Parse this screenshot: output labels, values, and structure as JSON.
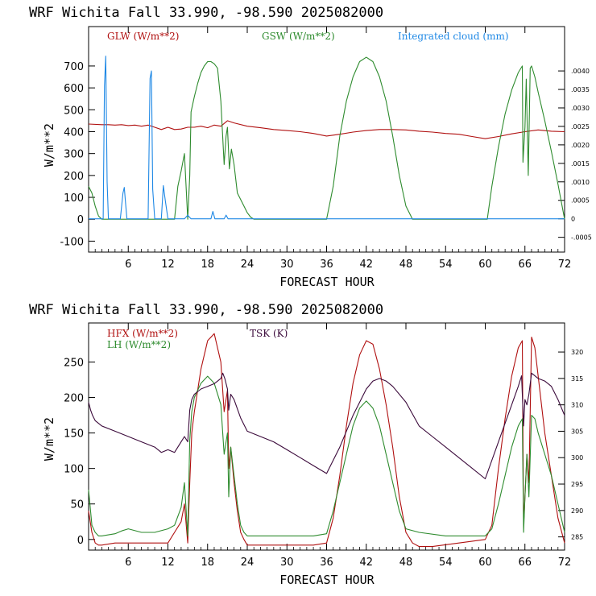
{
  "chart_data": [
    {
      "type": "line",
      "header": "WRF   Wichita Fall  33.990, -98.590  2025082000",
      "xlabel": "FORECAST HOUR",
      "ylabel": "W/m**2",
      "xlim": [
        0,
        72
      ],
      "ylim": [
        -150,
        880
      ],
      "x_ticks": [
        "6",
        "12",
        "18",
        "24",
        "30",
        "36",
        "42",
        "48",
        "54",
        "60",
        "66",
        "72"
      ],
      "y_ticks": [
        "-100",
        "0",
        "100",
        "200",
        "300",
        "400",
        "500",
        "600",
        "700"
      ],
      "y2lim": [
        -0.0009,
        0.0052
      ],
      "y2_ticks": [
        "-.0005",
        "0",
        ".0005",
        ".0010",
        ".0015",
        ".0020",
        ".0025",
        ".0030",
        ".0035",
        ".0040"
      ],
      "series": [
        {
          "name": "GLW (W/m**2)",
          "color": "#b01010",
          "axis": "left",
          "x": [
            0,
            2,
            3,
            4,
            5,
            6,
            7,
            8,
            9,
            10,
            11,
            12,
            13,
            14,
            15,
            16,
            17,
            18,
            19,
            20,
            21,
            22,
            24,
            26,
            28,
            30,
            32,
            34,
            36,
            38,
            40,
            42,
            44,
            46,
            48,
            50,
            52,
            54,
            56,
            58,
            60,
            62,
            64,
            66,
            68,
            70,
            72
          ],
          "y": [
            435,
            432,
            432,
            430,
            432,
            428,
            430,
            425,
            430,
            420,
            410,
            420,
            410,
            412,
            420,
            420,
            425,
            418,
            430,
            425,
            450,
            440,
            425,
            418,
            410,
            405,
            400,
            392,
            380,
            388,
            398,
            405,
            410,
            410,
            408,
            402,
            398,
            392,
            388,
            378,
            368,
            378,
            390,
            400,
            408,
            402,
            400
          ]
        },
        {
          "name": "GSW (W/m**2)",
          "color": "#2e8b2e",
          "axis": "left",
          "x": [
            0,
            0.5,
            1,
            1.5,
            2,
            13,
            13.5,
            14,
            14.5,
            15,
            15.3,
            15.5,
            16,
            16.5,
            17,
            17.5,
            18,
            18.5,
            19,
            19.5,
            20,
            20.5,
            20.8,
            21,
            21.3,
            21.6,
            22,
            22.5,
            23,
            23.5,
            24,
            24.5,
            25,
            25.5,
            36,
            37,
            38,
            39,
            40,
            41,
            42,
            43,
            44,
            45,
            46,
            47,
            48,
            49,
            60.3,
            61,
            62,
            63,
            64,
            65,
            65.6,
            65.7,
            66,
            66.2,
            66.5,
            66.8,
            67,
            67.5,
            68,
            69,
            70,
            71,
            72
          ],
          "y": [
            150,
            120,
            60,
            15,
            0,
            0,
            150,
            220,
            300,
            0,
            200,
            490,
            560,
            620,
            670,
            700,
            720,
            720,
            710,
            690,
            540,
            250,
            380,
            420,
            230,
            320,
            250,
            120,
            90,
            60,
            30,
            10,
            0,
            0,
            0,
            150,
            380,
            540,
            650,
            720,
            740,
            720,
            650,
            540,
            380,
            200,
            60,
            0,
            0,
            150,
            330,
            480,
            590,
            670,
            700,
            260,
            420,
            640,
            200,
            690,
            700,
            650,
            580,
            450,
            310,
            160,
            0
          ]
        },
        {
          "name": "Integrated cloud (mm)",
          "color": "#1e88e5",
          "axis": "right",
          "x": [
            0,
            2.2,
            2.4,
            2.6,
            2.8,
            3.0,
            4.8,
            5.2,
            5.4,
            5.6,
            5.8,
            9.0,
            9.3,
            9.5,
            9.7,
            10.0,
            11.0,
            11.3,
            11.6,
            12.0,
            14.5,
            15,
            15.5,
            18.5,
            18.8,
            19.1,
            20.5,
            20.8,
            21.1,
            72
          ],
          "y": [
            0,
            0,
            0.0036,
            0.0044,
            0.001,
            0,
            0,
            0.0007,
            0.00085,
            0.0004,
            0,
            0,
            0.0038,
            0.004,
            0.0008,
            0,
            0,
            0.0009,
            0.0005,
            0,
            0,
            0.0001,
            0,
            0,
            0.0002,
            0,
            0,
            0.0001,
            0,
            0
          ]
        }
      ]
    },
    {
      "type": "line",
      "header": "WRF   Wichita Fall  33.990, -98.590  2025082000",
      "xlabel": "FORECAST HOUR",
      "ylabel": "W/m**2",
      "xlim": [
        0,
        72
      ],
      "ylim": [
        -15,
        305
      ],
      "x_ticks": [
        "6",
        "12",
        "18",
        "24",
        "30",
        "36",
        "42",
        "48",
        "54",
        "60",
        "66",
        "72"
      ],
      "y_ticks": [
        "0",
        "50",
        "100",
        "150",
        "200",
        "250"
      ],
      "y2lim": [
        282.5,
        325.5
      ],
      "y2_ticks": [
        "285",
        "290",
        "295",
        "300",
        "305",
        "310",
        "315",
        "320"
      ],
      "series": [
        {
          "name": "HFX (W/m**2)",
          "color": "#b01010",
          "axis": "left",
          "x": [
            0,
            0.5,
            1,
            1.5,
            2,
            4,
            6,
            8,
            10,
            12,
            13,
            14,
            14.5,
            15,
            15.3,
            15.6,
            16,
            17,
            18,
            19,
            20,
            20.5,
            21,
            21.2,
            21.5,
            22,
            22.5,
            23,
            23.5,
            24,
            26,
            28,
            30,
            32,
            34,
            36,
            37,
            38,
            39,
            40,
            41,
            42,
            43,
            44,
            45,
            46,
            47,
            48,
            49,
            50,
            52,
            56,
            60,
            61,
            62,
            63,
            64,
            65,
            65.6,
            65.8,
            66,
            66.3,
            66.6,
            67,
            67.5,
            68,
            69,
            70,
            71,
            72
          ],
          "y": [
            40,
            10,
            -5,
            -8,
            -8,
            -5,
            -5,
            -5,
            -5,
            -5,
            10,
            25,
            50,
            -5,
            80,
            150,
            180,
            240,
            280,
            290,
            250,
            180,
            210,
            100,
            130,
            80,
            40,
            10,
            0,
            -8,
            -8,
            -8,
            -8,
            -8,
            -8,
            -5,
            30,
            90,
            160,
            220,
            260,
            280,
            275,
            240,
            190,
            130,
            60,
            10,
            -5,
            -10,
            -10,
            -5,
            0,
            20,
            100,
            170,
            230,
            270,
            280,
            20,
            60,
            120,
            80,
            285,
            270,
            230,
            150,
            90,
            30,
            -5
          ]
        },
        {
          "name": "LH  (W/m**2)",
          "color": "#2e8b2e",
          "axis": "left",
          "x": [
            0,
            0.5,
            1,
            1.5,
            2,
            4,
            5,
            6,
            8,
            10,
            12,
            13,
            14,
            14.5,
            15,
            15.3,
            15.6,
            16,
            17,
            18,
            19,
            20,
            20.5,
            21,
            21.2,
            21.5,
            22,
            22.5,
            23,
            23.5,
            24,
            26,
            30,
            34,
            36,
            37,
            38,
            39,
            40,
            41,
            42,
            43,
            44,
            45,
            46,
            47,
            48,
            50,
            54,
            60,
            61,
            62,
            63,
            64,
            65,
            65.6,
            65.8,
            66,
            66.3,
            66.6,
            67,
            67.5,
            68,
            69,
            70,
            71,
            72
          ],
          "y": [
            70,
            20,
            10,
            5,
            5,
            8,
            12,
            15,
            10,
            10,
            15,
            20,
            45,
            80,
            5,
            140,
            180,
            200,
            220,
            230,
            220,
            190,
            120,
            150,
            60,
            130,
            90,
            50,
            20,
            10,
            5,
            5,
            5,
            5,
            8,
            40,
            80,
            120,
            160,
            185,
            195,
            185,
            160,
            120,
            80,
            40,
            15,
            10,
            5,
            5,
            15,
            50,
            90,
            130,
            160,
            170,
            10,
            60,
            120,
            60,
            175,
            170,
            150,
            120,
            90,
            50,
            10
          ]
        },
        {
          "name": "TSK (K)",
          "color": "#3b0a3b",
          "axis": "right",
          "x": [
            0,
            0.3,
            0.6,
            1,
            1.5,
            2,
            4,
            6,
            8,
            10,
            11,
            12,
            13,
            14,
            14.5,
            15,
            15.3,
            15.6,
            16,
            17,
            18,
            19,
            20,
            20.3,
            20.6,
            21,
            21.2,
            21.5,
            22,
            23,
            24,
            26,
            28,
            30,
            32,
            34,
            36,
            38,
            40,
            42,
            43,
            44,
            45,
            46,
            48,
            50,
            52,
            54,
            56,
            58,
            60,
            62,
            64,
            65,
            65.5,
            65.8,
            66,
            66.3,
            66.6,
            67,
            67.5,
            68,
            69,
            70,
            71,
            72
          ],
          "y": [
            310.5,
            309,
            308,
            307,
            306.5,
            306,
            305,
            304,
            303,
            302,
            301,
            301.5,
            301,
            303,
            304,
            303,
            309,
            311,
            312,
            313,
            313.5,
            314,
            315,
            316,
            315,
            313,
            309,
            312,
            311,
            307.5,
            305,
            304,
            303,
            301.5,
            300,
            298.5,
            297,
            302,
            308,
            313,
            314.5,
            315,
            314.5,
            313.5,
            310.5,
            306,
            304,
            302,
            300,
            298,
            296,
            303,
            310,
            313.5,
            315.5,
            306,
            311,
            310,
            312,
            316,
            315.5,
            315,
            314.5,
            313.5,
            311,
            308
          ]
        }
      ]
    }
  ],
  "panel1": {
    "legend_glw": "GLW (W/m**2)",
    "legend_gsw": "GSW (W/m**2)",
    "legend_cloud": "Integrated cloud (mm)"
  },
  "panel2": {
    "legend_hfx": "HFX (W/m**2)",
    "legend_lh": "LH  (W/m**2)",
    "legend_tsk": "TSK (K)"
  }
}
